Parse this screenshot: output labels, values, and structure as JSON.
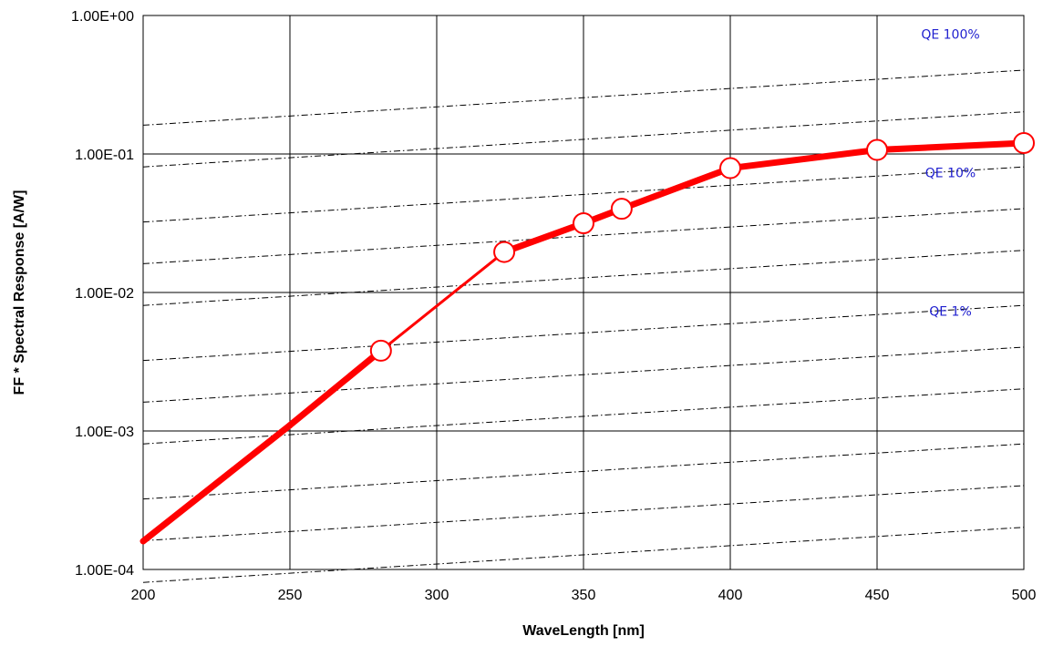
{
  "chart_data": {
    "type": "line",
    "title": "",
    "xlabel": "WaveLength [nm]",
    "ylabel": "FF * Spectral Response [A/W]",
    "xlim": [
      200,
      500
    ],
    "ylim": [
      0.0001,
      1
    ],
    "y_scale": "log",
    "grid": true,
    "x_ticks": [
      200,
      250,
      300,
      350,
      400,
      450,
      500
    ],
    "x_tick_labels": [
      "200",
      "250",
      "300",
      "350",
      "400",
      "450",
      "500"
    ],
    "y_ticks": [
      0.0001,
      0.001,
      0.01,
      0.1,
      1
    ],
    "y_tick_labels": [
      "1.00E-04",
      "1.00E-03",
      "1.00E-02",
      "1.00E-01",
      "1.00E+00"
    ],
    "series": [
      {
        "color": "#ff0000",
        "x": [
          200,
          250,
          281,
          323,
          350,
          363,
          400,
          450,
          500
        ],
        "y": [
          0.00016,
          0.0011,
          0.0038,
          0.0196,
          0.0316,
          0.0402,
          0.079,
          0.107,
          0.12
        ],
        "markers_x": [
          281,
          323,
          350,
          363,
          400,
          450,
          500
        ],
        "markers_y": [
          0.0038,
          0.0196,
          0.0316,
          0.0402,
          0.079,
          0.107,
          0.12
        ]
      }
    ],
    "reference_lines": {
      "qe_levels": [
        1.0,
        0.5,
        0.2,
        0.1,
        0.05,
        0.02,
        0.01,
        0.005,
        0.002,
        0.001,
        0.0005
      ],
      "style": "dash-dot",
      "color": "#000000"
    },
    "annotations": [
      {
        "text": "QE 100%",
        "x": 475,
        "y": 0.68
      },
      {
        "text": "QE 10%",
        "x": 475,
        "y": 0.068
      },
      {
        "text": "QE 1%",
        "x": 475,
        "y": 0.0068
      }
    ],
    "annotation_color": "#1f1fcf"
  }
}
